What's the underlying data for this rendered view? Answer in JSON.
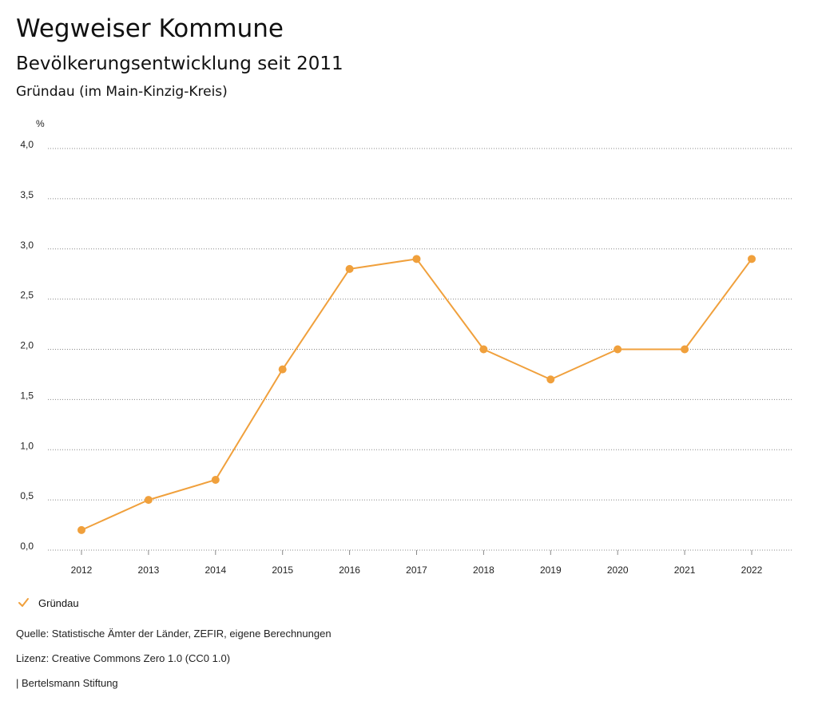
{
  "header": {
    "title": "Wegweiser Kommune",
    "subtitle": "Bevölkerungsentwicklung seit 2011",
    "region": "Gründau (im Main-Kinzig-Kreis)"
  },
  "chart_data": {
    "type": "line",
    "title": "Bevölkerungsentwicklung seit 2011",
    "ylabel": "%",
    "xlabel": "",
    "categories": [
      "2012",
      "2013",
      "2014",
      "2015",
      "2016",
      "2017",
      "2018",
      "2019",
      "2020",
      "2021",
      "2022"
    ],
    "series": [
      {
        "name": "Gründau",
        "values": [
          0.2,
          0.5,
          0.7,
          1.8,
          2.8,
          2.9,
          2.0,
          1.7,
          2.0,
          2.0,
          2.9
        ]
      }
    ],
    "ylim": [
      0,
      4
    ],
    "yticks": [
      "0,0",
      "0,5",
      "1,0",
      "1,5",
      "2,0",
      "2,5",
      "3,0",
      "3,5",
      "4,0"
    ],
    "grid": true,
    "legend_position": "bottom-left",
    "color": "#f0a03c"
  },
  "legend": {
    "label": "Gründau",
    "icon": "check-icon"
  },
  "footer": {
    "source": "Quelle: Statistische Ämter der Länder, ZEFIR, eigene Berechnungen",
    "license": "Lizenz: Creative Commons Zero 1.0 (CC0 1.0)",
    "publisher": "| Bertelsmann Stiftung"
  }
}
